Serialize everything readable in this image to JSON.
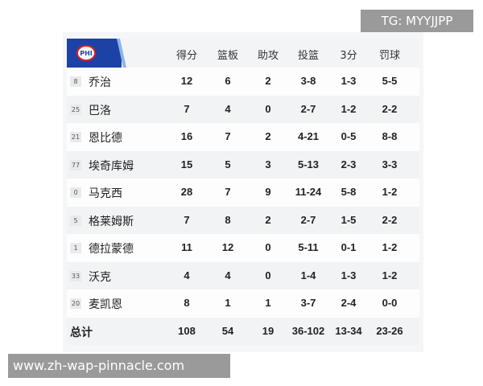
{
  "team": {
    "logo_text": "PHI",
    "color": "#1d42a6"
  },
  "columns": [
    "得分",
    "篮板",
    "助攻",
    "投篮",
    "3分",
    "罚球"
  ],
  "players": [
    {
      "num": "8",
      "name": "乔治",
      "stats": [
        "12",
        "6",
        "2",
        "3-8",
        "1-3",
        "5-5"
      ]
    },
    {
      "num": "25",
      "name": "巴洛",
      "stats": [
        "7",
        "4",
        "0",
        "2-7",
        "1-2",
        "2-2"
      ]
    },
    {
      "num": "21",
      "name": "恩比德",
      "stats": [
        "16",
        "7",
        "2",
        "4-21",
        "0-5",
        "8-8"
      ]
    },
    {
      "num": "77",
      "name": "埃奇库姆",
      "stats": [
        "15",
        "5",
        "3",
        "5-13",
        "2-3",
        "3-3"
      ]
    },
    {
      "num": "0",
      "name": "马克西",
      "stats": [
        "28",
        "7",
        "9",
        "11-24",
        "5-8",
        "1-2"
      ]
    },
    {
      "num": "5",
      "name": "格莱姆斯",
      "stats": [
        "7",
        "8",
        "2",
        "2-7",
        "1-5",
        "2-2"
      ]
    },
    {
      "num": "1",
      "name": "德拉蒙德",
      "stats": [
        "11",
        "12",
        "0",
        "5-11",
        "0-1",
        "1-2"
      ]
    },
    {
      "num": "33",
      "name": "沃克",
      "stats": [
        "4",
        "4",
        "0",
        "1-4",
        "1-3",
        "1-2"
      ]
    },
    {
      "num": "20",
      "name": "麦凯恩",
      "stats": [
        "8",
        "1",
        "1",
        "3-7",
        "2-4",
        "0-0"
      ]
    }
  ],
  "total": {
    "label": "总计",
    "stats": [
      "108",
      "54",
      "19",
      "36-102",
      "13-34",
      "23-26"
    ]
  },
  "watermarks": {
    "top": "TG: MYYJJPP",
    "bottom": "www.zh-wap-pinnacle.com"
  }
}
